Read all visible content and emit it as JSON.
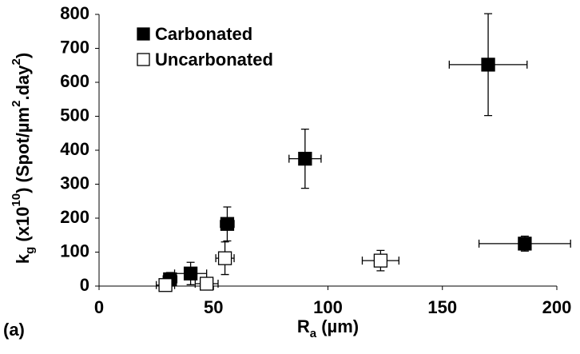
{
  "chart_data": {
    "type": "scatter",
    "x_label": [
      {
        "text": "R"
      },
      {
        "text": "a",
        "shift": "sub"
      },
      {
        "text": " (µm)"
      }
    ],
    "y_label": [
      {
        "text": "k"
      },
      {
        "text": "g",
        "shift": "sub"
      },
      {
        "text": " (x10"
      },
      {
        "text": "10",
        "shift": "super"
      },
      {
        "text": ") (Spot/µm"
      },
      {
        "text": "2",
        "shift": "super"
      },
      {
        "text": ".day"
      },
      {
        "text": "2",
        "shift": "super"
      },
      {
        "text": ")"
      }
    ],
    "panel_label": "(a)",
    "xlim": [
      0,
      200
    ],
    "xticks": [
      0,
      50,
      100,
      150,
      200
    ],
    "ylim": [
      0,
      800
    ],
    "yticks": [
      0,
      100,
      200,
      300,
      400,
      500,
      600,
      700,
      800
    ],
    "legend": "upper left",
    "series": [
      {
        "name": "Carbonated",
        "color": "#000000",
        "edgecolor": "#000000",
        "x": [
          31,
          40,
          56,
          90,
          170,
          186
        ],
        "y": [
          20,
          37,
          183,
          375,
          652,
          125
        ],
        "xerr": [
          3,
          7,
          3,
          7,
          17,
          20
        ],
        "yerr": [
          20,
          33,
          50,
          87,
          150,
          22
        ]
      },
      {
        "name": "Uncarbonated",
        "color": "#ffffff",
        "edgecolor": "#000000",
        "x": [
          29,
          47,
          55,
          123
        ],
        "y": [
          3,
          7,
          82,
          75
        ],
        "xerr": [
          4,
          5,
          4,
          8
        ],
        "yerr": [
          8,
          8,
          48,
          30
        ]
      }
    ]
  }
}
